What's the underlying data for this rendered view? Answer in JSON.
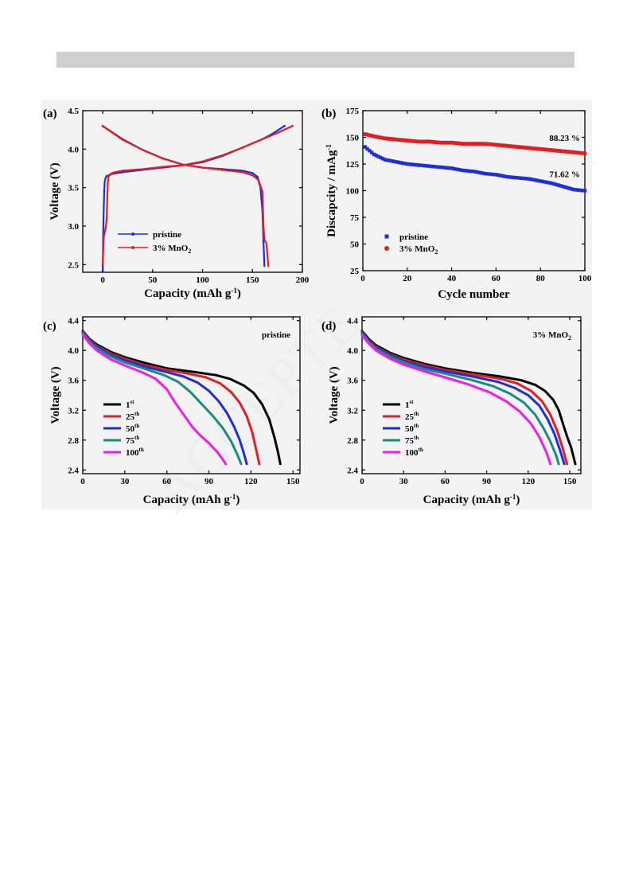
{
  "page": {
    "watermark_text": "ACCEPTE"
  },
  "chart_data": [
    {
      "panel": "(a)",
      "type": "line",
      "xlabel": "Capacity (mAh g",
      "xlabel_sup": "-1",
      "xlabel_tail": ")",
      "ylabel": "Voltage (V)",
      "xlim": [
        -20,
        200
      ],
      "ylim": [
        2.4,
        4.5
      ],
      "xticks": [
        0,
        50,
        100,
        150,
        200
      ],
      "yticks": [
        2.5,
        3.0,
        3.5,
        4.0,
        4.5
      ],
      "ytick_labels": [
        "2.5",
        "3.0",
        "3.5",
        "4.0",
        "4.5"
      ],
      "legend_position": "bottom-left",
      "series": [
        {
          "name": "pristine",
          "color": "#1f2ed6",
          "segments": [
            {
              "x": [
                0,
                0.5,
                1,
                1.5,
                2,
                3,
                4,
                6,
                10,
                20,
                40,
                60,
                80,
                100,
                120,
                140,
                160,
                170,
                182
              ],
              "y": [
                2.42,
                2.9,
                3.2,
                3.45,
                3.58,
                3.63,
                3.65,
                3.66,
                3.68,
                3.7,
                3.73,
                3.76,
                3.79,
                3.83,
                3.91,
                4.02,
                4.13,
                4.2,
                4.3
              ]
            },
            {
              "x": [
                0,
                20,
                40,
                60,
                80,
                100,
                120,
                140,
                150,
                155,
                158,
                160,
                161,
                162
              ],
              "y": [
                4.3,
                4.13,
                3.99,
                3.88,
                3.8,
                3.76,
                3.74,
                3.72,
                3.69,
                3.64,
                3.5,
                3.2,
                2.8,
                2.48
              ]
            }
          ]
        },
        {
          "name": "3% MnO",
          "name_sub": "2",
          "color": "#e02020",
          "segments": [
            {
              "x": [
                0,
                1,
                2,
                3,
                4,
                5,
                6,
                8,
                12,
                20,
                40,
                60,
                80,
                100,
                120,
                140,
                160,
                175,
                190
              ],
              "y": [
                2.5,
                2.85,
                2.92,
                2.98,
                3.1,
                3.55,
                3.65,
                3.68,
                3.7,
                3.72,
                3.74,
                3.77,
                3.79,
                3.84,
                3.92,
                4.02,
                4.13,
                4.21,
                4.3
              ]
            },
            {
              "x": [
                0,
                20,
                40,
                60,
                80,
                100,
                120,
                140,
                150,
                156,
                160,
                161,
                162,
                164,
                166
              ],
              "y": [
                4.3,
                4.12,
                3.99,
                3.88,
                3.8,
                3.76,
                3.73,
                3.7,
                3.66,
                3.6,
                3.45,
                3.0,
                2.82,
                2.78,
                2.48
              ]
            }
          ]
        }
      ]
    },
    {
      "panel": "(b)",
      "type": "scatter",
      "xlabel": "Cycle number",
      "ylabel": "Discapcity / mAg",
      "ylabel_sup": "-1",
      "xlim": [
        0,
        100
      ],
      "ylim": [
        25,
        175
      ],
      "xticks": [
        0,
        20,
        40,
        60,
        80,
        100
      ],
      "yticks": [
        25,
        50,
        75,
        100,
        125,
        150,
        175
      ],
      "legend_position": "bottom-left",
      "series": [
        {
          "name": "pristine",
          "color": "#1f2ed6",
          "marker": "square",
          "x": [
            1,
            5,
            10,
            15,
            20,
            25,
            30,
            35,
            40,
            45,
            50,
            55,
            60,
            65,
            70,
            75,
            80,
            85,
            90,
            95,
            100
          ],
          "y": [
            141,
            134,
            129,
            127,
            125,
            124,
            123,
            122,
            121,
            119,
            118,
            116,
            115,
            113,
            112,
            111,
            109,
            107,
            104,
            101,
            100
          ]
        },
        {
          "name": "3% MnO",
          "name_sub": "2",
          "color": "#e02020",
          "marker": "circle",
          "x": [
            1,
            5,
            10,
            15,
            20,
            25,
            30,
            35,
            40,
            45,
            50,
            55,
            60,
            65,
            70,
            75,
            80,
            85,
            90,
            95,
            100
          ],
          "y": [
            153,
            151,
            149,
            148,
            147,
            146,
            146,
            145,
            145,
            144,
            144,
            144,
            143,
            142,
            141,
            140,
            139,
            138,
            137,
            136,
            135
          ]
        }
      ],
      "annotations": [
        "88.23 %",
        "71.62 %"
      ]
    },
    {
      "panel": "(c)",
      "type": "line",
      "xlabel": "Capacity",
      "xlabel_unit": "(mAh g",
      "xlabel_sup": "-1",
      "xlabel_tail": ")",
      "ylabel": "Voltage (V)",
      "title": "pristine",
      "xlim": [
        0,
        155
      ],
      "ylim": [
        2.35,
        4.45
      ],
      "xticks": [
        0,
        30,
        60,
        90,
        120,
        150
      ],
      "yticks": [
        2.4,
        2.8,
        3.2,
        3.6,
        4.0,
        4.4
      ],
      "ytick_labels": [
        "2.4",
        "2.8",
        "3.2",
        "3.6",
        "4.0",
        "4.4"
      ],
      "legend_position": "left",
      "series": [
        {
          "name": "1",
          "name_sup": "st",
          "color": "#000000",
          "x": [
            0,
            5,
            10,
            20,
            30,
            45,
            60,
            80,
            95,
            105,
            115,
            122,
            128,
            133,
            137,
            139.5,
            141
          ],
          "y": [
            4.26,
            4.15,
            4.08,
            3.98,
            3.91,
            3.83,
            3.76,
            3.71,
            3.67,
            3.62,
            3.53,
            3.43,
            3.28,
            3.08,
            2.82,
            2.62,
            2.48
          ]
        },
        {
          "name": "25",
          "name_sup": "th",
          "color": "#e02020",
          "x": [
            0,
            5,
            10,
            20,
            30,
            45,
            60,
            75,
            88,
            98,
            106,
            112,
            117,
            121,
            124,
            126
          ],
          "y": [
            4.25,
            4.14,
            4.06,
            3.96,
            3.89,
            3.8,
            3.74,
            3.69,
            3.64,
            3.56,
            3.44,
            3.3,
            3.12,
            2.9,
            2.65,
            2.48
          ]
        },
        {
          "name": "50",
          "name_sup": "th",
          "color": "#1f2ed6",
          "x": [
            0,
            5,
            10,
            20,
            30,
            45,
            60,
            72,
            82,
            90,
            97,
            103,
            108,
            112,
            115,
            117
          ],
          "y": [
            4.24,
            4.12,
            4.05,
            3.94,
            3.87,
            3.78,
            3.71,
            3.65,
            3.57,
            3.46,
            3.32,
            3.16,
            2.98,
            2.8,
            2.62,
            2.48
          ]
        },
        {
          "name": "75",
          "name_sup": "th",
          "color": "#1b8a7f",
          "x": [
            0,
            5,
            10,
            20,
            30,
            45,
            58,
            68,
            77,
            85,
            93,
            100,
            106,
            110,
            113
          ],
          "y": [
            4.23,
            4.11,
            4.03,
            3.92,
            3.84,
            3.75,
            3.67,
            3.58,
            3.44,
            3.28,
            3.12,
            2.96,
            2.78,
            2.62,
            2.48
          ]
        },
        {
          "name": "100",
          "name_sup": "th",
          "color": "#ee1ee8",
          "x": [
            0,
            5,
            10,
            20,
            30,
            42,
            52,
            60,
            66,
            72,
            78,
            84,
            90,
            96,
            100,
            102
          ],
          "y": [
            4.21,
            4.09,
            4.0,
            3.88,
            3.8,
            3.71,
            3.62,
            3.48,
            3.3,
            3.14,
            2.98,
            2.86,
            2.76,
            2.64,
            2.54,
            2.48
          ]
        }
      ]
    },
    {
      "panel": "(d)",
      "type": "line",
      "xlabel": "Capacity",
      "xlabel_unit": "(mAh g",
      "xlabel_sup": "-1",
      "xlabel_tail": ")",
      "ylabel": "Voltage (V)",
      "title": "3% MnO",
      "title_sub": "2",
      "xlim": [
        0,
        158
      ],
      "ylim": [
        2.35,
        4.45
      ],
      "xticks": [
        0,
        30,
        60,
        90,
        120,
        150
      ],
      "yticks": [
        2.4,
        2.8,
        3.2,
        3.6,
        4.0,
        4.4
      ],
      "ytick_labels": [
        "2.4",
        "2.8",
        "3.2",
        "3.6",
        "4.0",
        "4.4"
      ],
      "legend_position": "left",
      "series": [
        {
          "name": "1",
          "name_sup": "st",
          "color": "#000000",
          "x": [
            0,
            5,
            10,
            20,
            30,
            45,
            60,
            80,
            100,
            115,
            125,
            132,
            138,
            142,
            145,
            148,
            151,
            154
          ],
          "y": [
            4.26,
            4.15,
            4.07,
            3.97,
            3.9,
            3.82,
            3.76,
            3.7,
            3.65,
            3.6,
            3.54,
            3.46,
            3.34,
            3.2,
            3.02,
            2.85,
            2.7,
            2.48
          ]
        },
        {
          "name": "25",
          "name_sup": "th",
          "color": "#e02020",
          "x": [
            0,
            5,
            10,
            20,
            30,
            45,
            60,
            80,
            100,
            112,
            122,
            130,
            136,
            141,
            145,
            148
          ],
          "y": [
            4.25,
            4.13,
            4.05,
            3.95,
            3.88,
            3.8,
            3.74,
            3.68,
            3.62,
            3.56,
            3.46,
            3.32,
            3.14,
            2.92,
            2.68,
            2.48
          ]
        },
        {
          "name": "50",
          "name_sup": "th",
          "color": "#1f2ed6",
          "x": [
            0,
            5,
            10,
            20,
            30,
            45,
            60,
            80,
            98,
            110,
            120,
            128,
            134,
            139,
            143,
            146
          ],
          "y": [
            4.24,
            4.12,
            4.04,
            3.94,
            3.86,
            3.78,
            3.72,
            3.65,
            3.58,
            3.5,
            3.4,
            3.26,
            3.08,
            2.88,
            2.66,
            2.48
          ]
        },
        {
          "name": "75",
          "name_sup": "th",
          "color": "#1b8a7f",
          "x": [
            0,
            5,
            10,
            20,
            30,
            45,
            60,
            78,
            95,
            107,
            117,
            125,
            131,
            136,
            140,
            142
          ],
          "y": [
            4.22,
            4.11,
            4.02,
            3.92,
            3.84,
            3.75,
            3.69,
            3.61,
            3.52,
            3.42,
            3.3,
            3.14,
            2.96,
            2.78,
            2.6,
            2.48
          ]
        },
        {
          "name": "100",
          "name_sup": "th",
          "color": "#ee1ee8",
          "x": [
            0,
            5,
            10,
            20,
            30,
            45,
            60,
            76,
            92,
            104,
            114,
            122,
            128,
            133,
            136
          ],
          "y": [
            4.2,
            4.09,
            4.0,
            3.89,
            3.81,
            3.72,
            3.64,
            3.55,
            3.44,
            3.32,
            3.18,
            3.02,
            2.84,
            2.64,
            2.48
          ]
        }
      ]
    }
  ]
}
